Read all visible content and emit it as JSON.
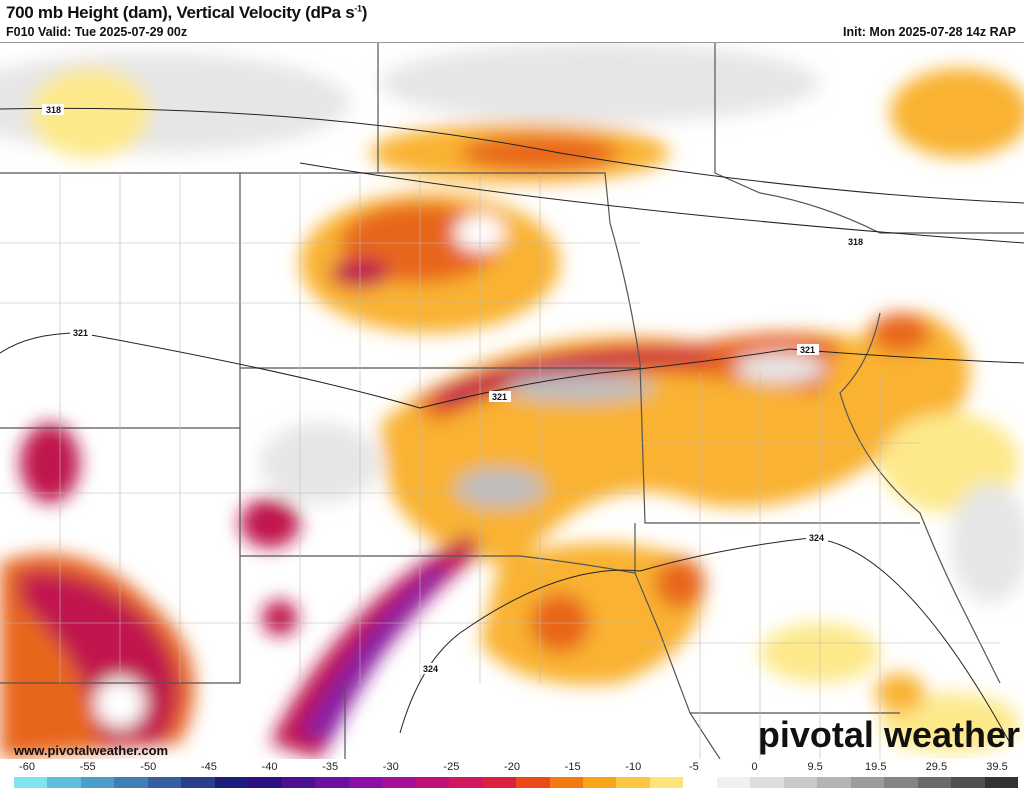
{
  "header": {
    "title": "700 mb Height (dam), Vertical Velocity (dPa s",
    "title_sup": "-1",
    "title_close": ")",
    "valid": "F010 Valid: Tue 2025-07-29 00z",
    "init": "Init: Mon 2025-07-28 14z RAP"
  },
  "map": {
    "contour_labels": [
      "318",
      "318",
      "321",
      "321",
      "321",
      "324",
      "324"
    ],
    "colors": {
      "ascent_strong": "#8a1aa0",
      "ascent_mid": "#c0134d",
      "ascent_weak": "#e8661a",
      "ascent_light": "#f9b233",
      "ascent_faint": "#fde98a",
      "descent": "#bdbdbd",
      "descent_weak": "#e6e6e6"
    }
  },
  "watermark": {
    "url": "www.pivotalweather.com",
    "brand": "pivotal weather"
  },
  "colorbar": {
    "labels": [
      "-60",
      "-55",
      "-50",
      "-45",
      "-40",
      "-35",
      "-30",
      "-25",
      "-20",
      "-15",
      "-10",
      "-5",
      "0",
      "9.5",
      "19.5",
      "29.5",
      "39.5"
    ],
    "colors": [
      "#7fe3f0",
      "#5fbfdb",
      "#4a9ec9",
      "#3f7fb5",
      "#355fa0",
      "#2a3f8c",
      "#1c1f7a",
      "#2a0f80",
      "#4b0f90",
      "#6a0fa0",
      "#8a0fa8",
      "#a80f98",
      "#c0107a",
      "#d01860",
      "#dd2040",
      "#e84a18",
      "#f27a10",
      "#f9a51a",
      "#fcc640",
      "#fde47a",
      "#ffffff",
      "#f0f0f0",
      "#dedede",
      "#cacaca",
      "#b4b4b4",
      "#9c9c9c",
      "#848484",
      "#6a6a6a",
      "#505050",
      "#333333"
    ]
  }
}
